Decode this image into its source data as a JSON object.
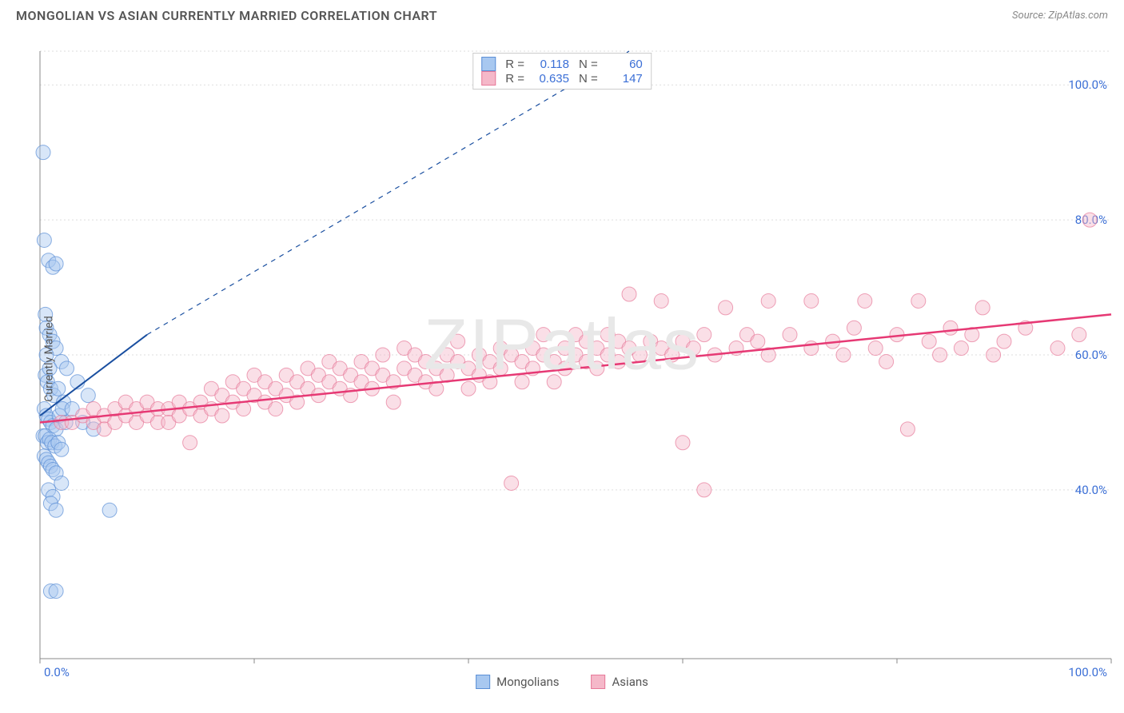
{
  "header": {
    "title": "MONGOLIAN VS ASIAN CURRENTLY MARRIED CORRELATION CHART",
    "source": "Source: ZipAtlas.com"
  },
  "watermark": "ZIPatlas",
  "chart": {
    "type": "scatter-with-regression",
    "ylabel": "Currently Married",
    "background_color": "#ffffff",
    "grid_color": "#dddddd",
    "axis_color": "#888888",
    "tick_label_color": "#3b6fd6",
    "label_fontsize": 14,
    "tick_fontsize": 15,
    "xlim": [
      0,
      100
    ],
    "ylim": [
      15,
      105
    ],
    "x_ticks": [
      0,
      20,
      40,
      60,
      80,
      100
    ],
    "y_ticks": [
      40,
      60,
      80,
      100
    ],
    "x_tick_labels": [
      "0.0%",
      "",
      "",
      "",
      "",
      "100.0%"
    ],
    "y_tick_labels": [
      "40.0%",
      "60.0%",
      "80.0%",
      "100.0%"
    ],
    "marker_radius": 9,
    "marker_opacity": 0.45,
    "series": [
      {
        "name": "Mongolians",
        "color_fill": "#a8c8f0",
        "color_stroke": "#5b8fd6",
        "r": "0.118",
        "n": "60",
        "regression": {
          "x1": 0,
          "y1": 51,
          "x2": 10,
          "y2": 63,
          "extrap_x2": 55,
          "extrap_y2": 118,
          "color": "#1a4fa0",
          "width": 2
        },
        "points": [
          [
            0.3,
            90
          ],
          [
            0.4,
            77
          ],
          [
            0.8,
            74
          ],
          [
            1.2,
            73
          ],
          [
            1.5,
            73.5
          ],
          [
            0.5,
            66
          ],
          [
            0.6,
            64
          ],
          [
            0.9,
            63
          ],
          [
            1.2,
            62
          ],
          [
            1.5,
            61
          ],
          [
            2.0,
            59
          ],
          [
            2.5,
            58
          ],
          [
            0.5,
            57
          ],
          [
            0.7,
            56
          ],
          [
            1.0,
            55
          ],
          [
            1.3,
            54
          ],
          [
            1.7,
            55
          ],
          [
            2.2,
            53
          ],
          [
            0.4,
            52
          ],
          [
            0.6,
            51
          ],
          [
            0.8,
            50.5
          ],
          [
            1.0,
            50
          ],
          [
            1.2,
            49.5
          ],
          [
            1.5,
            49
          ],
          [
            1.8,
            51
          ],
          [
            2.1,
            52
          ],
          [
            2.4,
            50
          ],
          [
            0.3,
            48
          ],
          [
            0.5,
            48
          ],
          [
            0.7,
            47
          ],
          [
            0.9,
            47.5
          ],
          [
            1.1,
            47
          ],
          [
            1.4,
            46.5
          ],
          [
            1.7,
            47
          ],
          [
            2.0,
            46
          ],
          [
            0.4,
            45
          ],
          [
            0.6,
            44.5
          ],
          [
            0.8,
            44
          ],
          [
            1.0,
            43.5
          ],
          [
            1.2,
            43
          ],
          [
            1.5,
            42.5
          ],
          [
            0.8,
            40
          ],
          [
            1.2,
            39
          ],
          [
            2.0,
            41
          ],
          [
            1.0,
            38
          ],
          [
            1.5,
            37
          ],
          [
            6.5,
            37
          ],
          [
            1.0,
            25
          ],
          [
            1.5,
            25
          ],
          [
            0.6,
            60
          ],
          [
            0.9,
            58
          ],
          [
            3.0,
            52
          ],
          [
            3.5,
            56
          ],
          [
            4.0,
            50
          ],
          [
            4.5,
            54
          ],
          [
            5.0,
            49
          ]
        ]
      },
      {
        "name": "Asians",
        "color_fill": "#f5b8c9",
        "color_stroke": "#e77a9a",
        "r": "0.635",
        "n": "147",
        "regression": {
          "x1": 0,
          "y1": 50,
          "x2": 100,
          "y2": 66,
          "color": "#e63974",
          "width": 2.5
        },
        "points": [
          [
            2,
            50
          ],
          [
            3,
            50
          ],
          [
            4,
            51
          ],
          [
            5,
            50
          ],
          [
            5,
            52
          ],
          [
            6,
            51
          ],
          [
            6,
            49
          ],
          [
            7,
            50
          ],
          [
            7,
            52
          ],
          [
            8,
            51
          ],
          [
            8,
            53
          ],
          [
            9,
            50
          ],
          [
            9,
            52
          ],
          [
            10,
            51
          ],
          [
            10,
            53
          ],
          [
            11,
            50
          ],
          [
            11,
            52
          ],
          [
            12,
            52
          ],
          [
            12,
            50
          ],
          [
            13,
            51
          ],
          [
            13,
            53
          ],
          [
            14,
            52
          ],
          [
            14,
            47
          ],
          [
            15,
            51
          ],
          [
            15,
            53
          ],
          [
            16,
            52
          ],
          [
            16,
            55
          ],
          [
            17,
            51
          ],
          [
            17,
            54
          ],
          [
            18,
            53
          ],
          [
            18,
            56
          ],
          [
            19,
            52
          ],
          [
            19,
            55
          ],
          [
            20,
            54
          ],
          [
            20,
            57
          ],
          [
            21,
            53
          ],
          [
            21,
            56
          ],
          [
            22,
            55
          ],
          [
            22,
            52
          ],
          [
            23,
            54
          ],
          [
            23,
            57
          ],
          [
            24,
            53
          ],
          [
            24,
            56
          ],
          [
            25,
            55
          ],
          [
            25,
            58
          ],
          [
            26,
            54
          ],
          [
            26,
            57
          ],
          [
            27,
            56
          ],
          [
            27,
            59
          ],
          [
            28,
            55
          ],
          [
            28,
            58
          ],
          [
            29,
            57
          ],
          [
            29,
            54
          ],
          [
            30,
            56
          ],
          [
            30,
            59
          ],
          [
            31,
            55
          ],
          [
            31,
            58
          ],
          [
            32,
            57
          ],
          [
            32,
            60
          ],
          [
            33,
            56
          ],
          [
            33,
            53
          ],
          [
            34,
            58
          ],
          [
            34,
            61
          ],
          [
            35,
            57
          ],
          [
            35,
            60
          ],
          [
            36,
            56
          ],
          [
            36,
            59
          ],
          [
            37,
            58
          ],
          [
            37,
            55
          ],
          [
            38,
            57
          ],
          [
            38,
            60
          ],
          [
            39,
            59
          ],
          [
            39,
            62
          ],
          [
            40,
            58
          ],
          [
            40,
            55
          ],
          [
            41,
            60
          ],
          [
            41,
            57
          ],
          [
            42,
            59
          ],
          [
            42,
            56
          ],
          [
            43,
            58
          ],
          [
            43,
            61
          ],
          [
            44,
            60
          ],
          [
            44,
            41
          ],
          [
            45,
            59
          ],
          [
            45,
            56
          ],
          [
            46,
            58
          ],
          [
            46,
            61
          ],
          [
            47,
            60
          ],
          [
            47,
            63
          ],
          [
            48,
            59
          ],
          [
            48,
            56
          ],
          [
            49,
            61
          ],
          [
            49,
            58
          ],
          [
            50,
            60
          ],
          [
            50,
            63
          ],
          [
            51,
            59
          ],
          [
            51,
            62
          ],
          [
            52,
            61
          ],
          [
            52,
            58
          ],
          [
            53,
            60
          ],
          [
            53,
            63
          ],
          [
            54,
            62
          ],
          [
            54,
            59
          ],
          [
            55,
            61
          ],
          [
            55,
            69
          ],
          [
            56,
            60
          ],
          [
            57,
            62
          ],
          [
            58,
            61
          ],
          [
            58,
            68
          ],
          [
            59,
            60
          ],
          [
            60,
            62
          ],
          [
            60,
            47
          ],
          [
            61,
            61
          ],
          [
            62,
            63
          ],
          [
            62,
            40
          ],
          [
            63,
            60
          ],
          [
            64,
            67
          ],
          [
            65,
            61
          ],
          [
            66,
            63
          ],
          [
            67,
            62
          ],
          [
            68,
            60
          ],
          [
            68,
            68
          ],
          [
            70,
            63
          ],
          [
            72,
            61
          ],
          [
            72,
            68
          ],
          [
            74,
            62
          ],
          [
            75,
            60
          ],
          [
            76,
            64
          ],
          [
            77,
            68
          ],
          [
            78,
            61
          ],
          [
            79,
            59
          ],
          [
            80,
            63
          ],
          [
            81,
            49
          ],
          [
            82,
            68
          ],
          [
            83,
            62
          ],
          [
            84,
            60
          ],
          [
            85,
            64
          ],
          [
            86,
            61
          ],
          [
            87,
            63
          ],
          [
            88,
            67
          ],
          [
            89,
            60
          ],
          [
            90,
            62
          ],
          [
            92,
            64
          ],
          [
            95,
            61
          ],
          [
            97,
            63
          ],
          [
            98,
            80
          ]
        ]
      }
    ]
  },
  "legend_bottom": [
    {
      "label": "Mongolians",
      "fill": "#a8c8f0",
      "stroke": "#5b8fd6"
    },
    {
      "label": "Asians",
      "fill": "#f5b8c9",
      "stroke": "#e77a9a"
    }
  ]
}
